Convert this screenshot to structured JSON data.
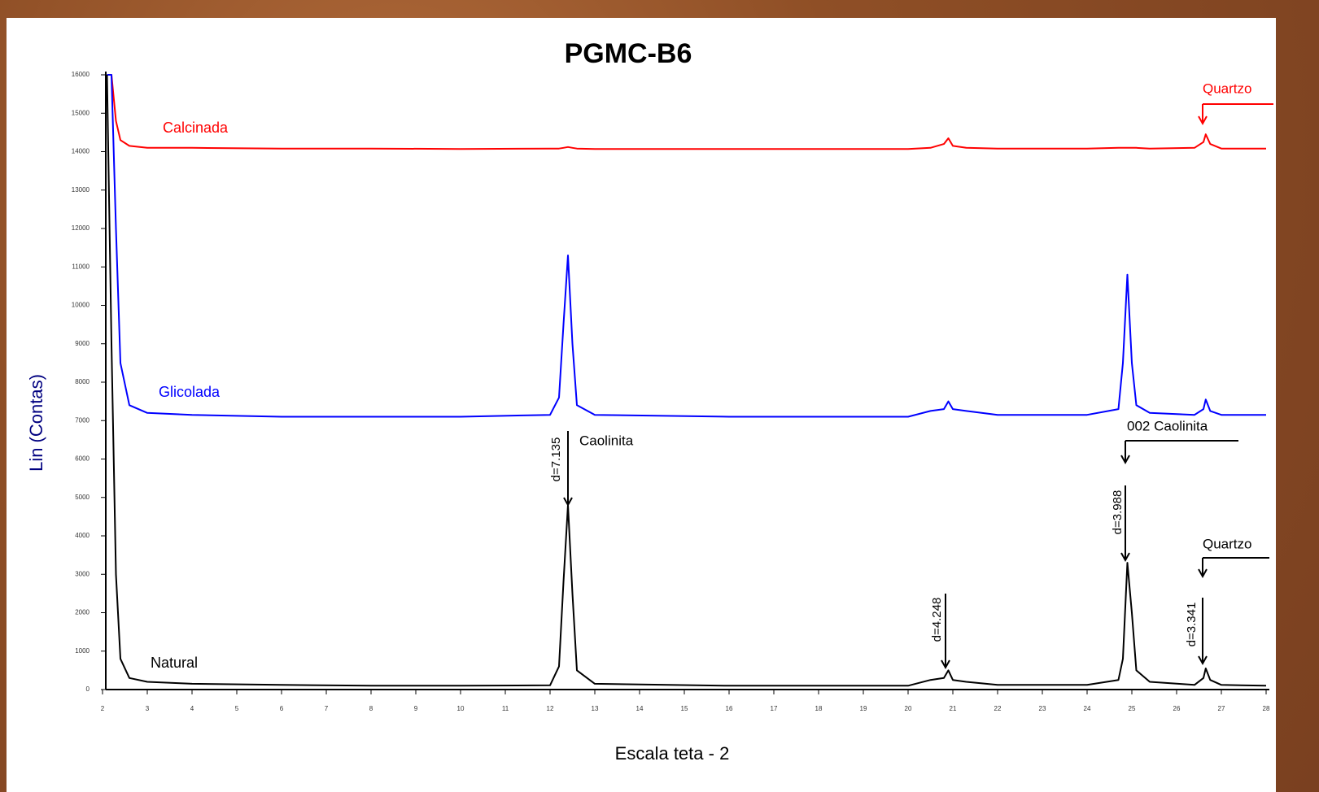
{
  "chart_data": {
    "type": "line",
    "title": "PGMC-B6",
    "xlabel": "Escala teta - 2",
    "ylabel": "Lin (Contas)",
    "x": [
      2.1,
      2.2,
      2.3,
      2.4,
      2.6,
      3,
      4,
      6,
      8,
      10,
      12,
      12.2,
      12.3,
      12.4,
      12.5,
      12.6,
      13,
      16,
      20,
      20.5,
      20.8,
      20.9,
      21.0,
      21.3,
      22,
      24,
      24.7,
      24.8,
      24.9,
      25.0,
      25.1,
      25.4,
      26.4,
      26.6,
      26.65,
      26.75,
      27,
      28
    ],
    "series": [
      {
        "name": "Calcinada",
        "color": "#ff0000",
        "values": [
          16000,
          16000,
          14800,
          14300,
          14150,
          14100,
          14100,
          14080,
          14080,
          14070,
          14080,
          14080,
          14100,
          14120,
          14100,
          14080,
          14070,
          14070,
          14070,
          14100,
          14200,
          14350,
          14150,
          14100,
          14080,
          14080,
          14100,
          14100,
          14100,
          14100,
          14100,
          14080,
          14100,
          14250,
          14450,
          14200,
          14080,
          14080
        ]
      },
      {
        "name": "Glicolada",
        "color": "#0000ff",
        "values": [
          16000,
          16000,
          12000,
          8500,
          7400,
          7200,
          7150,
          7100,
          7100,
          7100,
          7150,
          7600,
          9500,
          11300,
          9000,
          7400,
          7150,
          7100,
          7100,
          7250,
          7300,
          7500,
          7300,
          7250,
          7150,
          7150,
          7300,
          8500,
          10800,
          8500,
          7400,
          7200,
          7150,
          7300,
          7550,
          7250,
          7150,
          7150
        ]
      },
      {
        "name": "Natural",
        "color": "#000000",
        "values": [
          16000,
          9000,
          3000,
          800,
          300,
          200,
          150,
          120,
          100,
          100,
          110,
          600,
          2800,
          4800,
          2500,
          500,
          150,
          100,
          100,
          250,
          300,
          500,
          250,
          200,
          120,
          120,
          250,
          800,
          3300,
          2000,
          500,
          200,
          120,
          300,
          550,
          250,
          120,
          100
        ]
      }
    ],
    "annotations": [
      "Quartzo",
      "Caolinita",
      "d=7.135",
      "002 Caolinita",
      "d=3.988",
      "d=4.248",
      "Quartzo",
      "d=3.341"
    ],
    "xlim": [
      2,
      28
    ],
    "ylim": [
      0,
      16000
    ],
    "xticks": [
      2,
      3,
      4,
      5,
      6,
      7,
      8,
      9,
      10,
      11,
      12,
      13,
      14,
      15,
      16,
      17,
      18,
      19,
      20,
      21,
      22,
      23,
      24,
      25,
      26,
      27,
      28
    ],
    "yticks": [
      0,
      1000,
      2000,
      3000,
      4000,
      5000,
      6000,
      7000,
      8000,
      9000,
      10000,
      11000,
      12000,
      13000,
      14000,
      15000,
      16000
    ]
  }
}
